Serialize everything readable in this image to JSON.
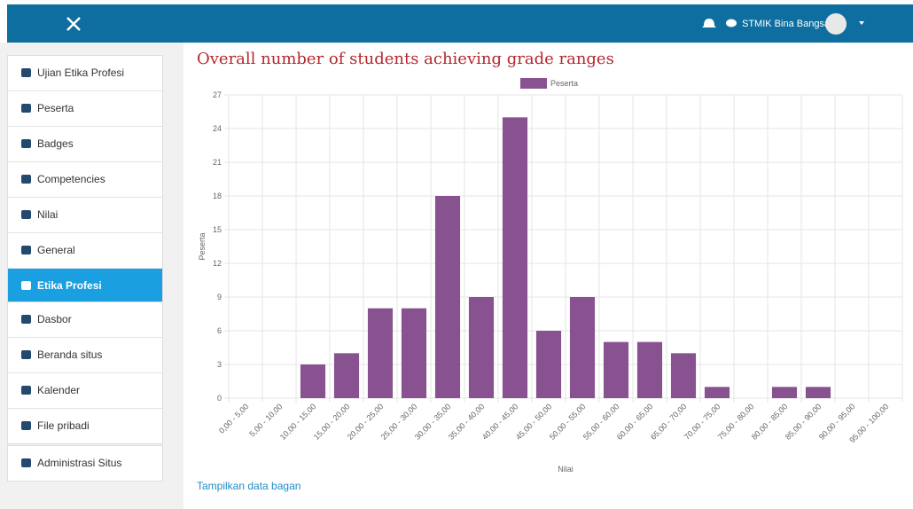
{
  "header": {
    "user": "STMIK Bina Bangsa"
  },
  "nav": {
    "groups": [
      [
        "Ujian Etika Profesi",
        "Peserta",
        "Badges",
        "Competencies",
        "Nilai",
        "General",
        "Etika Profesi"
      ],
      [
        "Dasbor",
        "Beranda situs",
        "Kalender",
        "File pribadi"
      ],
      [
        "Administrasi Situs"
      ]
    ]
  },
  "chart_data": {
    "type": "bar",
    "title": "Overall number of students achieving grade ranges",
    "categories": [
      "0,00 - 5,00",
      "5,00 - 10,00",
      "10,00 - 15,00",
      "15,00 - 20,00",
      "20,00 - 25,00",
      "25,00 - 30,00",
      "30,00 - 35,00",
      "35,00 - 40,00",
      "40,00 - 45,00",
      "45,00 - 50,00",
      "50,00 - 55,00",
      "55,00 - 60,00",
      "60,00 - 65,00",
      "65,00 - 70,00",
      "70,00 - 75,00",
      "75,00 - 80,00",
      "80,00 - 85,00",
      "85,00 - 90,00",
      "90,00 - 95,00",
      "95,00 - 100,00"
    ],
    "series": [
      {
        "name": "Peserta",
        "color": "#87528f",
        "values": [
          0,
          0,
          3,
          4,
          8,
          8,
          18,
          9,
          25,
          6,
          9,
          5,
          5,
          4,
          1,
          0,
          1,
          1,
          0,
          0
        ]
      }
    ],
    "xlabel": "Nilai",
    "ylabel": "Peserta",
    "ylim": [
      0,
      27
    ],
    "yticks": [
      0,
      3,
      6,
      9,
      12,
      15,
      18,
      21,
      24,
      27
    ],
    "grid": true,
    "legend": "top"
  },
  "link": "Tampilkan data bagan"
}
